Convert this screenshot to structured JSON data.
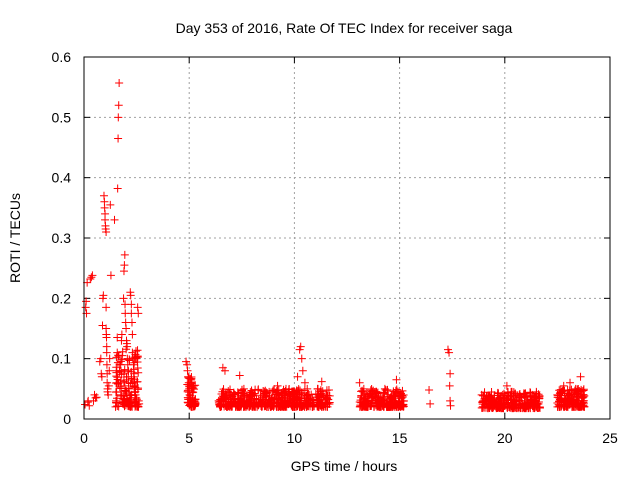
{
  "chart_data": {
    "type": "scatter",
    "title": "Day 353 of 2016, Rate Of TEC Index for receiver saga",
    "xlabel": "GPS time / hours",
    "ylabel": "ROTI / TECUs",
    "xlim": [
      0,
      25
    ],
    "ylim": [
      0,
      0.6
    ],
    "xticks": [
      0,
      5,
      10,
      15,
      20,
      25
    ],
    "xtick_labels": [
      "0",
      "5",
      "10",
      "15",
      "20",
      "25"
    ],
    "yticks": [
      0,
      0.1,
      0.2,
      0.3,
      0.4,
      0.5,
      0.6
    ],
    "ytick_labels": [
      "0",
      "0.1",
      "0.2",
      "0.3",
      "0.4",
      "0.5",
      "0.6"
    ],
    "grid": true,
    "marker": "+",
    "color": "#ff0000",
    "series": [
      {
        "name": "ROTI",
        "points": [
          [
            0.05,
            0.024
          ],
          [
            0.08,
            0.185
          ],
          [
            0.1,
            0.195
          ],
          [
            0.12,
            0.175
          ],
          [
            0.15,
            0.226
          ],
          [
            0.18,
            0.028
          ],
          [
            0.2,
            0.03
          ],
          [
            0.25,
            0.022
          ],
          [
            0.3,
            0.232
          ],
          [
            0.35,
            0.235
          ],
          [
            0.4,
            0.238
          ],
          [
            0.45,
            0.03
          ],
          [
            0.5,
            0.04
          ],
          [
            0.55,
            0.035
          ],
          [
            0.6,
            0.036
          ],
          [
            0.75,
            0.095
          ],
          [
            0.8,
            0.1
          ],
          [
            0.82,
            0.075
          ],
          [
            0.85,
            0.07
          ],
          [
            0.88,
            0.155
          ],
          [
            0.9,
            0.2
          ],
          [
            0.92,
            0.205
          ],
          [
            0.95,
            0.37
          ],
          [
            0.97,
            0.36
          ],
          [
            0.98,
            0.35
          ],
          [
            1.0,
            0.34
          ],
          [
            1.0,
            0.33
          ],
          [
            1.02,
            0.32
          ],
          [
            1.03,
            0.315
          ],
          [
            1.05,
            0.31
          ],
          [
            1.05,
            0.185
          ],
          [
            1.05,
            0.15
          ],
          [
            1.06,
            0.14
          ],
          [
            1.07,
            0.135
          ],
          [
            1.08,
            0.12
          ],
          [
            1.08,
            0.11
          ],
          [
            1.09,
            0.09
          ],
          [
            1.1,
            0.075
          ],
          [
            1.1,
            0.06
          ],
          [
            1.12,
            0.05
          ],
          [
            1.12,
            0.045
          ],
          [
            1.15,
            0.04
          ],
          [
            1.18,
            0.055
          ],
          [
            1.2,
            0.08
          ],
          [
            1.22,
            0.1
          ],
          [
            1.25,
            0.355
          ],
          [
            1.28,
            0.238
          ],
          [
            1.45,
            0.33
          ],
          [
            1.5,
            0.02
          ],
          [
            1.52,
            0.03
          ],
          [
            1.55,
            0.045
          ],
          [
            1.55,
            0.06
          ],
          [
            1.56,
            0.08
          ],
          [
            1.58,
            0.11
          ],
          [
            1.58,
            0.135
          ],
          [
            1.6,
            0.382
          ],
          [
            1.62,
            0.465
          ],
          [
            1.63,
            0.5
          ],
          [
            1.65,
            0.52
          ],
          [
            1.67,
            0.557
          ],
          [
            1.7,
            0.09
          ],
          [
            1.72,
            0.06
          ],
          [
            1.75,
            0.04
          ],
          [
            1.78,
            0.13
          ],
          [
            1.8,
            0.14
          ],
          [
            1.82,
            0.105
          ],
          [
            1.85,
            0.025
          ],
          [
            1.88,
            0.2
          ],
          [
            1.9,
            0.245
          ],
          [
            1.92,
            0.255
          ],
          [
            1.94,
            0.272
          ],
          [
            1.95,
            0.19
          ],
          [
            1.96,
            0.175
          ],
          [
            1.98,
            0.16
          ],
          [
            2.0,
            0.15
          ],
          [
            2.02,
            0.13
          ],
          [
            2.04,
            0.125
          ],
          [
            2.05,
            0.12
          ],
          [
            2.06,
            0.1
          ],
          [
            2.08,
            0.09
          ],
          [
            2.1,
            0.08
          ],
          [
            2.1,
            0.07
          ],
          [
            2.12,
            0.06
          ],
          [
            2.14,
            0.05
          ],
          [
            2.15,
            0.04
          ],
          [
            2.16,
            0.03
          ],
          [
            2.18,
            0.025
          ],
          [
            2.2,
            0.21
          ],
          [
            2.22,
            0.205
          ],
          [
            2.25,
            0.19
          ],
          [
            2.25,
            0.175
          ],
          [
            2.28,
            0.16
          ],
          [
            2.3,
            0.14
          ],
          [
            2.3,
            0.11
          ],
          [
            2.32,
            0.1
          ],
          [
            2.35,
            0.09
          ],
          [
            2.38,
            0.075
          ],
          [
            2.4,
            0.065
          ],
          [
            2.4,
            0.055
          ],
          [
            2.42,
            0.045
          ],
          [
            2.45,
            0.04
          ],
          [
            2.48,
            0.035
          ],
          [
            2.5,
            0.03
          ],
          [
            2.55,
            0.185
          ],
          [
            2.58,
            0.175
          ],
          [
            2.6,
            0.03
          ],
          [
            2.62,
            0.025
          ],
          [
            4.85,
            0.095
          ],
          [
            4.9,
            0.09
          ],
          [
            4.92,
            0.08
          ],
          [
            4.95,
            0.07
          ],
          [
            4.98,
            0.06
          ],
          [
            5.0,
            0.05
          ],
          [
            5.02,
            0.04
          ],
          [
            5.05,
            0.035
          ],
          [
            5.08,
            0.03
          ],
          [
            5.1,
            0.025
          ],
          [
            5.12,
            0.02
          ],
          [
            5.15,
            0.045
          ],
          [
            5.2,
            0.055
          ],
          [
            5.25,
            0.03
          ],
          [
            6.4,
            0.03
          ],
          [
            6.5,
            0.025
          ],
          [
            6.6,
            0.085
          ],
          [
            6.7,
            0.08
          ],
          [
            6.8,
            0.04
          ],
          [
            7.0,
            0.035
          ],
          [
            7.2,
            0.028
          ],
          [
            7.4,
            0.072
          ],
          [
            7.6,
            0.05
          ],
          [
            7.8,
            0.03
          ],
          [
            8.0,
            0.04
          ],
          [
            8.2,
            0.032
          ],
          [
            8.4,
            0.028
          ],
          [
            8.6,
            0.038
          ],
          [
            8.8,
            0.045
          ],
          [
            9.0,
            0.03
          ],
          [
            9.2,
            0.055
          ],
          [
            9.4,
            0.04
          ],
          [
            9.6,
            0.05
          ],
          [
            9.8,
            0.035
          ],
          [
            10.0,
            0.045
          ],
          [
            10.15,
            0.07
          ],
          [
            10.25,
            0.115
          ],
          [
            10.3,
            0.12
          ],
          [
            10.35,
            0.1
          ],
          [
            10.4,
            0.08
          ],
          [
            10.5,
            0.06
          ],
          [
            10.7,
            0.04
          ],
          [
            10.9,
            0.03
          ],
          [
            11.1,
            0.05
          ],
          [
            11.3,
            0.062
          ],
          [
            11.5,
            0.04
          ],
          [
            11.6,
            0.025
          ],
          [
            13.1,
            0.06
          ],
          [
            13.3,
            0.05
          ],
          [
            13.5,
            0.04
          ],
          [
            13.7,
            0.03
          ],
          [
            13.9,
            0.045
          ],
          [
            14.1,
            0.035
          ],
          [
            14.3,
            0.05
          ],
          [
            14.5,
            0.03
          ],
          [
            14.7,
            0.04
          ],
          [
            14.85,
            0.065
          ],
          [
            15.0,
            0.04
          ],
          [
            15.2,
            0.03
          ],
          [
            16.4,
            0.048
          ],
          [
            16.45,
            0.025
          ],
          [
            17.3,
            0.115
          ],
          [
            17.35,
            0.11
          ],
          [
            17.4,
            0.075
          ],
          [
            17.38,
            0.055
          ],
          [
            17.4,
            0.03
          ],
          [
            17.42,
            0.022
          ],
          [
            18.9,
            0.04
          ],
          [
            19.1,
            0.03
          ],
          [
            19.3,
            0.025
          ],
          [
            19.5,
            0.035
          ],
          [
            19.7,
            0.03
          ],
          [
            19.9,
            0.04
          ],
          [
            20.1,
            0.055
          ],
          [
            20.3,
            0.045
          ],
          [
            20.5,
            0.035
          ],
          [
            20.7,
            0.03
          ],
          [
            20.9,
            0.04
          ],
          [
            21.1,
            0.03
          ],
          [
            21.3,
            0.04
          ],
          [
            21.5,
            0.045
          ],
          [
            21.6,
            0.025
          ],
          [
            22.5,
            0.04
          ],
          [
            22.6,
            0.03
          ],
          [
            22.7,
            0.045
          ],
          [
            22.8,
            0.055
          ],
          [
            22.9,
            0.03
          ],
          [
            23.0,
            0.035
          ],
          [
            23.1,
            0.06
          ],
          [
            23.2,
            0.04
          ],
          [
            23.3,
            0.03
          ],
          [
            23.4,
            0.045
          ],
          [
            23.5,
            0.025
          ],
          [
            23.6,
            0.07
          ],
          [
            23.7,
            0.035
          ]
        ],
        "dense_bands": [
          {
            "x_range": [
              6.4,
              11.7
            ],
            "y_range": [
              0.02,
              0.05
            ],
            "count": 520
          },
          {
            "x_range": [
              13.1,
              15.2
            ],
            "y_range": [
              0.02,
              0.05
            ],
            "count": 240
          },
          {
            "x_range": [
              18.9,
              21.7
            ],
            "y_range": [
              0.018,
              0.045
            ],
            "count": 280
          },
          {
            "x_range": [
              22.5,
              23.8
            ],
            "y_range": [
              0.02,
              0.05
            ],
            "count": 140
          },
          {
            "x_range": [
              4.9,
              5.3
            ],
            "y_range": [
              0.02,
              0.07
            ],
            "count": 60
          },
          {
            "x_range": [
              1.5,
              2.6
            ],
            "y_range": [
              0.02,
              0.12
            ],
            "count": 120
          }
        ]
      }
    ]
  }
}
